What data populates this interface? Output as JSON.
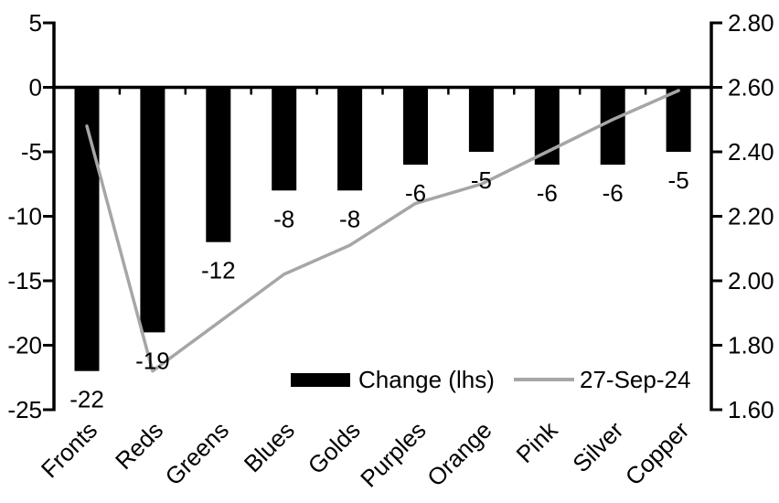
{
  "chart_data": {
    "type": "bar_line_combo",
    "title": "",
    "grid": false,
    "background": "#ffffff",
    "categories": [
      "Fronts",
      "Reds",
      "Greens",
      "Blues",
      "Golds",
      "Purples",
      "Orange",
      "Pink",
      "Silver",
      "Copper"
    ],
    "series": [
      {
        "name": "Change (lhs)",
        "type": "bar",
        "axis": "left",
        "color": "#000000",
        "values": [
          -22,
          -19,
          -12,
          -8,
          -8,
          -6,
          -5,
          -6,
          -6,
          -5
        ],
        "data_labels": [
          "-22",
          "-19",
          "-12",
          "-8",
          "-8",
          "-6",
          "-5",
          "-6",
          "-6",
          "-5"
        ]
      },
      {
        "name": "27-Sep-24",
        "type": "line",
        "axis": "right",
        "color": "#a6a6a6",
        "values": [
          2.48,
          1.72,
          1.87,
          2.02,
          2.11,
          2.24,
          2.3,
          2.4,
          2.5,
          2.59
        ]
      }
    ],
    "left_axis": {
      "min": -25,
      "max": 5,
      "step": 5,
      "tick_labels": [
        "5",
        "0",
        "-5",
        "-10",
        "-15",
        "-20",
        "-25"
      ]
    },
    "right_axis": {
      "min": 1.6,
      "max": 2.8,
      "step": 0.2,
      "tick_labels": [
        "2.80",
        "2.60",
        "2.40",
        "2.20",
        "2.00",
        "1.80",
        "1.60"
      ]
    },
    "legend": {
      "position": "bottom-inside",
      "entries": [
        {
          "label": "Change (lhs)",
          "swatch": "bar",
          "color": "#000000"
        },
        {
          "label": "27-Sep-24",
          "swatch": "line",
          "color": "#a6a6a6"
        }
      ]
    },
    "colors": {
      "bar": "#000000",
      "line": "#a6a6a6",
      "axis": "#000000",
      "text": "#000000"
    }
  }
}
